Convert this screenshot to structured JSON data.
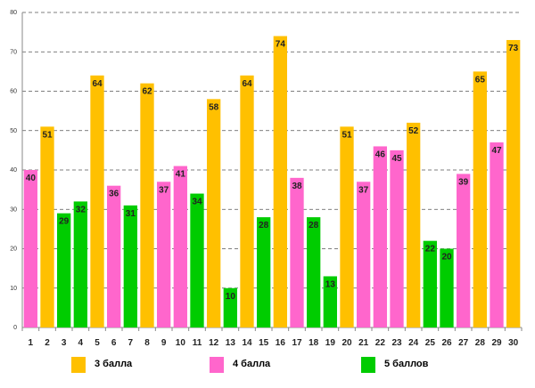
{
  "chart_data": {
    "type": "bar",
    "title": "",
    "xlabel": "",
    "ylabel": "",
    "ylim": [
      0,
      80
    ],
    "yticks": [
      0,
      10,
      20,
      30,
      40,
      50,
      60,
      70,
      80
    ],
    "grid": true,
    "legend_position": "bottom",
    "categories": [
      "1",
      "2",
      "3",
      "4",
      "5",
      "6",
      "7",
      "8",
      "9",
      "10",
      "11",
      "12",
      "13",
      "14",
      "15",
      "16",
      "17",
      "18",
      "19",
      "20",
      "21",
      "22",
      "23",
      "24",
      "25",
      "26",
      "27",
      "28",
      "29",
      "30"
    ],
    "values": [
      40,
      51,
      29,
      32,
      64,
      36,
      31,
      62,
      37,
      41,
      34,
      58,
      10,
      64,
      28,
      74,
      38,
      28,
      13,
      51,
      37,
      46,
      45,
      52,
      22,
      20,
      39,
      65,
      47,
      73
    ],
    "groups": [
      "4 балла",
      "3 балла",
      "5 баллов",
      "5 баллов",
      "3 балла",
      "4 балла",
      "5 баллов",
      "3 балла",
      "4 балла",
      "4 балла",
      "5 баллов",
      "3 балла",
      "5 баллов",
      "3 балла",
      "5 баллов",
      "3 балла",
      "4 балла",
      "5 баллов",
      "5 баллов",
      "3 балла",
      "4 балла",
      "4 балла",
      "4 балла",
      "3 балла",
      "5 баллов",
      "5 баллов",
      "4 балла",
      "3 балла",
      "4 балла",
      "3 балла"
    ],
    "series": [
      {
        "name": "3 балла",
        "color": "#FFC000"
      },
      {
        "name": "4 балла",
        "color": "#FF66CC"
      },
      {
        "name": "5 баллов",
        "color": "#00CC00"
      }
    ]
  }
}
